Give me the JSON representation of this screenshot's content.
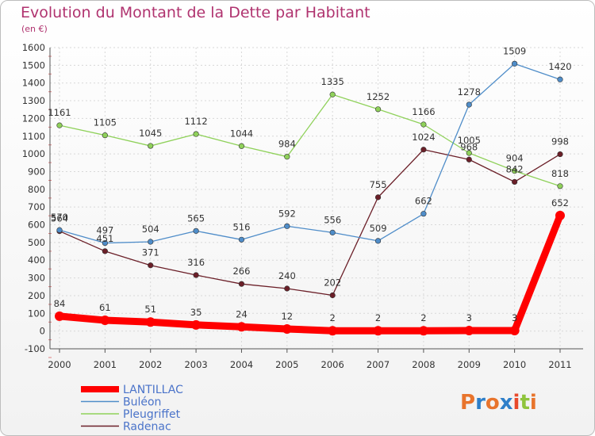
{
  "chart_data": {
    "type": "line",
    "title": "Evolution du Montant de la Dette par Habitant",
    "subtitle": "(en €)",
    "x": [
      "2000",
      "2001",
      "2002",
      "2003",
      "2004",
      "2005",
      "2006",
      "2007",
      "2008",
      "2009",
      "2010",
      "2011"
    ],
    "ylim": [
      -100,
      1600
    ],
    "yticks": [
      -100,
      0,
      100,
      200,
      300,
      400,
      500,
      600,
      700,
      800,
      900,
      1000,
      1100,
      1200,
      1300,
      1400,
      1500,
      1600
    ],
    "grid": true,
    "legend_position": "bottom-left",
    "series": [
      {
        "name": "LANTILLAC",
        "color": "#ff0000",
        "values": [
          84,
          61,
          51,
          35,
          24,
          12,
          2,
          2,
          2,
          3,
          3,
          652
        ]
      },
      {
        "name": "Buléon",
        "color": "#4f8dc9",
        "values": [
          570,
          497,
          504,
          565,
          516,
          592,
          556,
          509,
          662,
          1278,
          1509,
          1420
        ]
      },
      {
        "name": "Pleugriffet",
        "color": "#8fd15a",
        "values": [
          1161,
          1105,
          1045,
          1112,
          1044,
          984,
          1335,
          1252,
          1166,
          1005,
          904,
          818
        ]
      },
      {
        "name": "Radenac",
        "color": "#6b1f28",
        "values": [
          564,
          451,
          371,
          316,
          266,
          240,
          202,
          755,
          1024,
          968,
          842,
          998
        ]
      }
    ]
  },
  "logo": {
    "text": "Proxiti",
    "colors": [
      "#e8742c",
      "#2e7fc9",
      "#e8742c",
      "#2e7fc9",
      "#e84a2c",
      "#8fc43c",
      "#e8742c"
    ]
  }
}
